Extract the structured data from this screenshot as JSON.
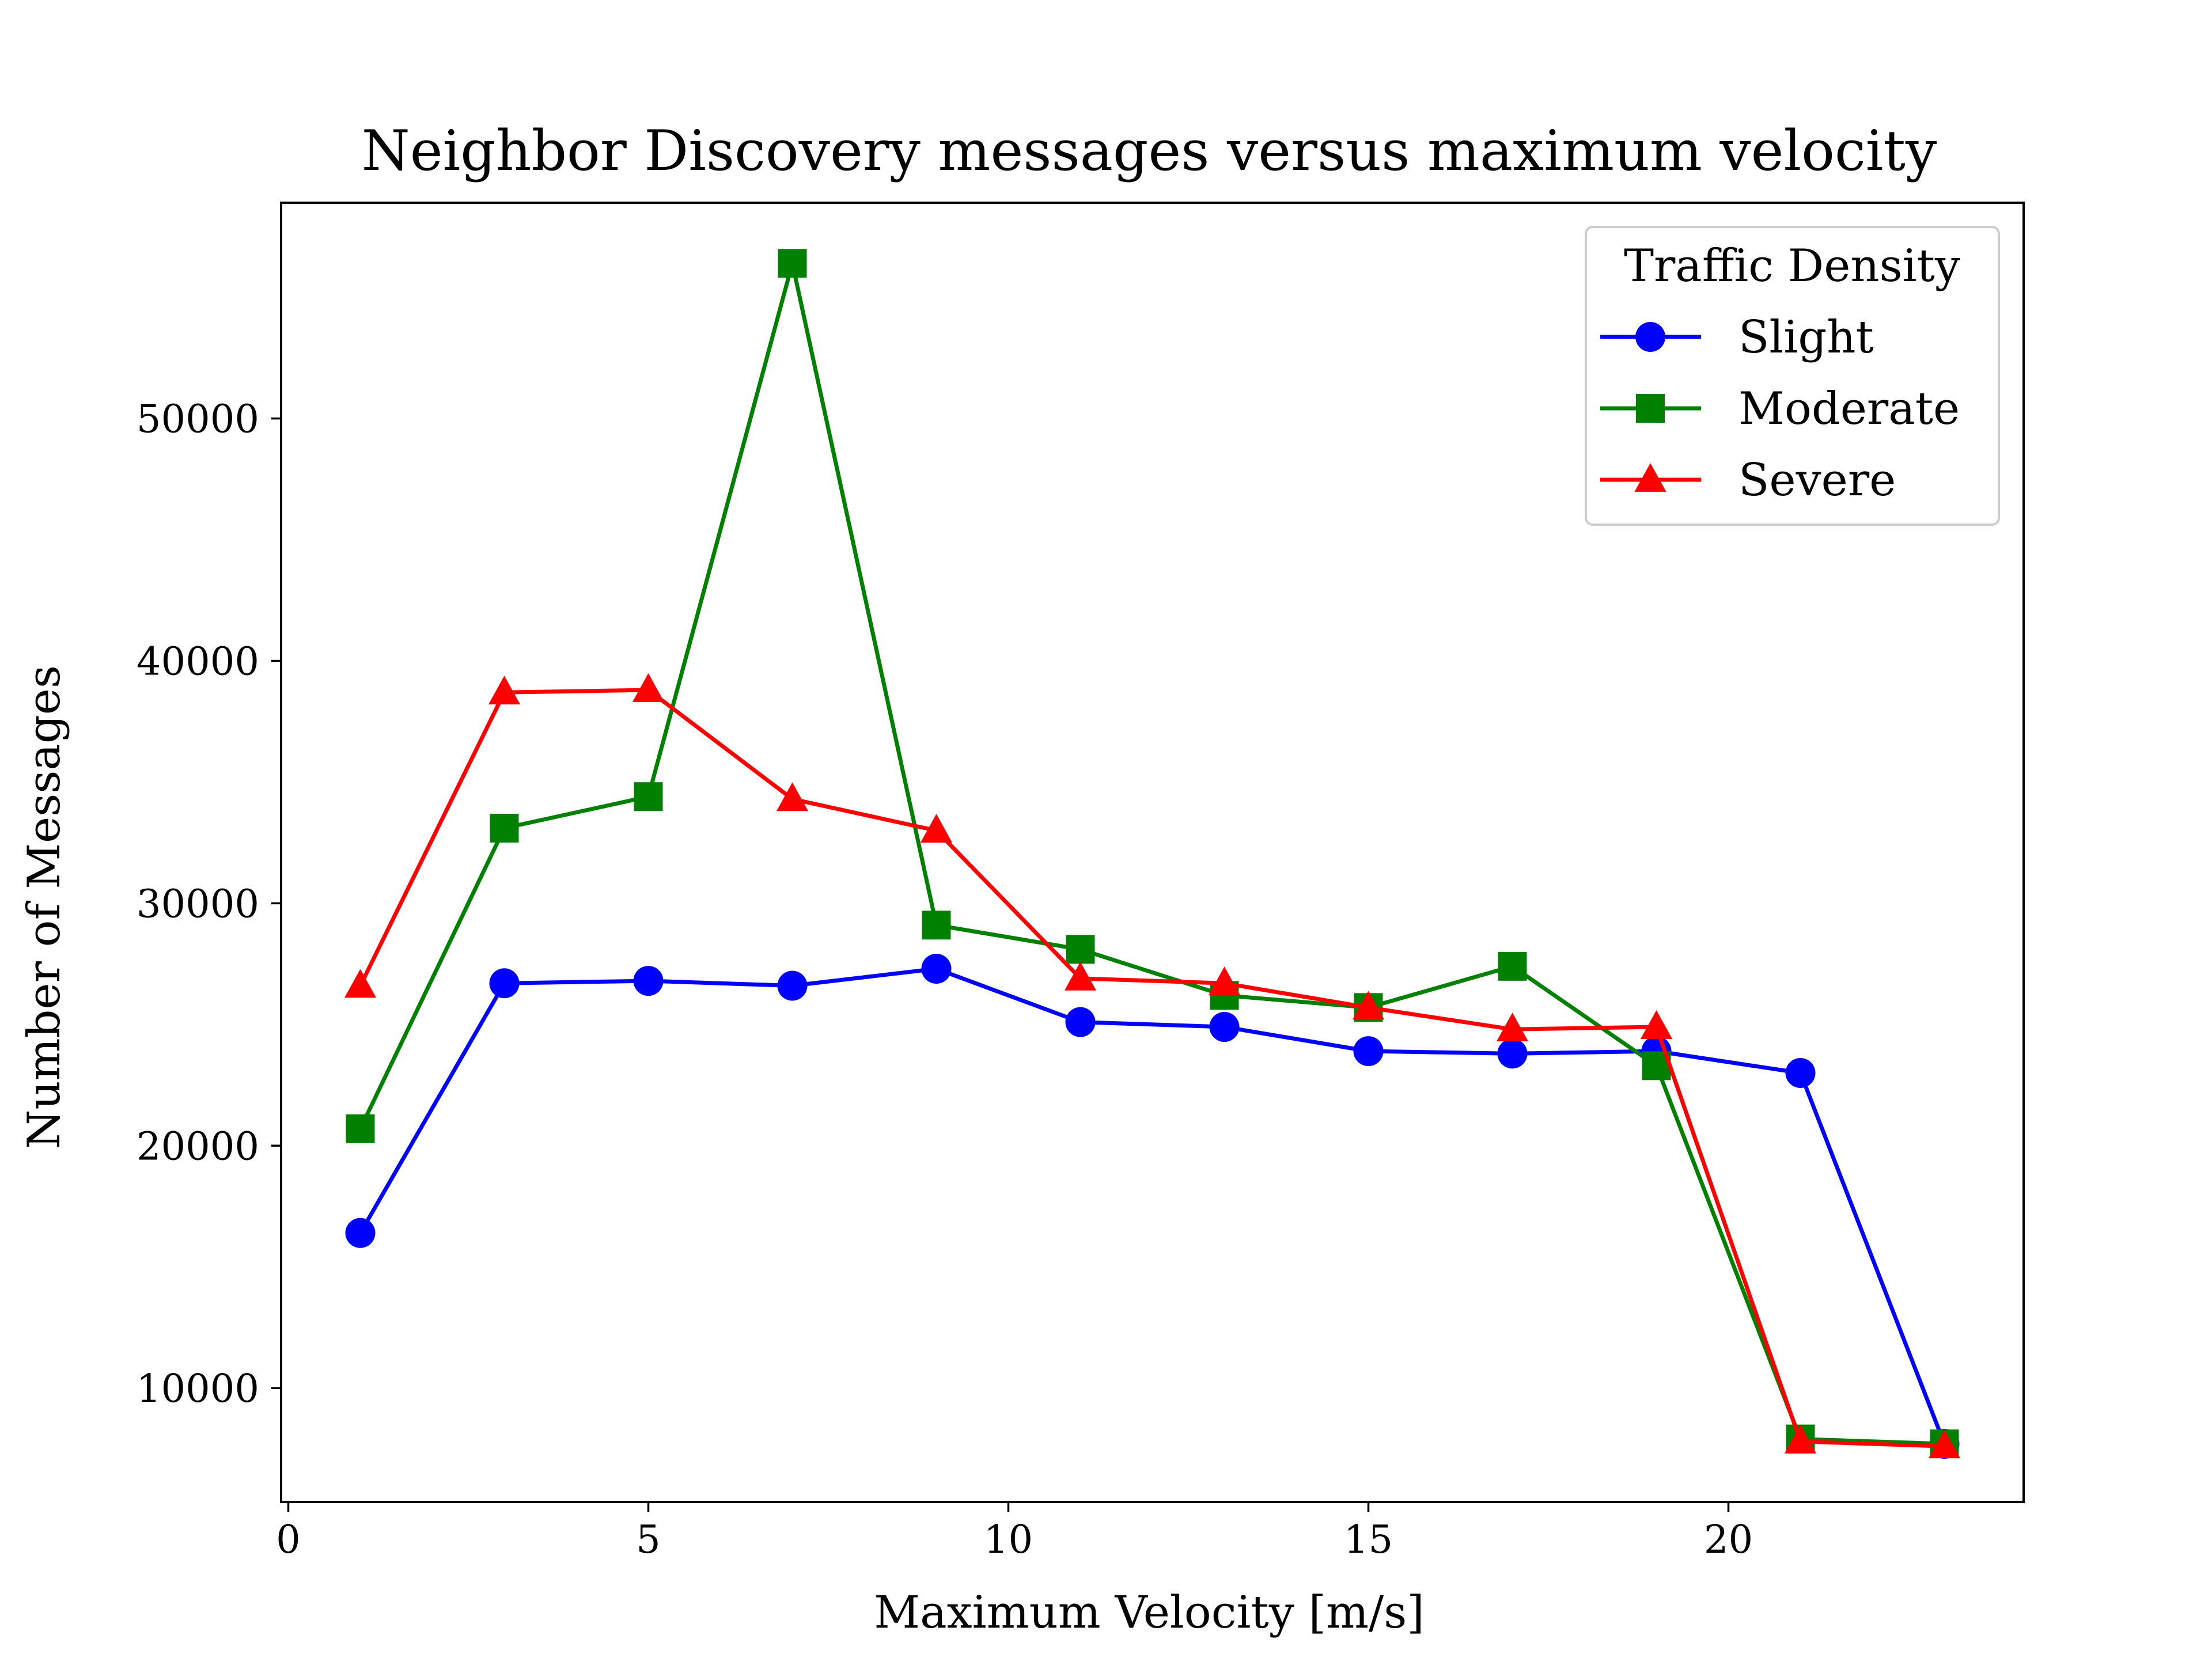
{
  "chart_data": {
    "type": "line",
    "title": "Neighbor Discovery messages versus maximum velocity",
    "xlabel": "Maximum Velocity [m/s]",
    "ylabel": "Number of Messages",
    "xlim": [
      -0.1,
      24.1
    ],
    "ylim": [
      5300,
      58900
    ],
    "xticks": [
      0,
      5,
      10,
      15,
      20
    ],
    "yticks": [
      10000,
      20000,
      30000,
      40000,
      50000
    ],
    "grid": false,
    "legend": {
      "title": "Traffic Density",
      "position": "top-right"
    },
    "series": [
      {
        "name": "Slight",
        "color": "#0000ff",
        "marker": "circle",
        "x": [
          1,
          3,
          5,
          7,
          9,
          11,
          13,
          15,
          17,
          19,
          21,
          23
        ],
        "y": [
          16400,
          26700,
          26800,
          26600,
          27300,
          25100,
          24900,
          23900,
          23800,
          23900,
          23000,
          7700
        ]
      },
      {
        "name": "Moderate",
        "color": "#008000",
        "marker": "square",
        "x": [
          1,
          3,
          5,
          7,
          9,
          11,
          13,
          15,
          17,
          19,
          21,
          23
        ],
        "y": [
          20700,
          33100,
          34400,
          56400,
          29100,
          28100,
          26200,
          25700,
          27400,
          23300,
          7900,
          7700
        ]
      },
      {
        "name": "Severe",
        "color": "#ff0000",
        "marker": "triangle",
        "x": [
          1,
          3,
          5,
          7,
          9,
          11,
          13,
          15,
          17,
          19,
          21,
          23
        ],
        "y": [
          26600,
          38700,
          38800,
          34300,
          33000,
          26900,
          26700,
          25700,
          24800,
          24900,
          7800,
          7600
        ]
      }
    ]
  }
}
